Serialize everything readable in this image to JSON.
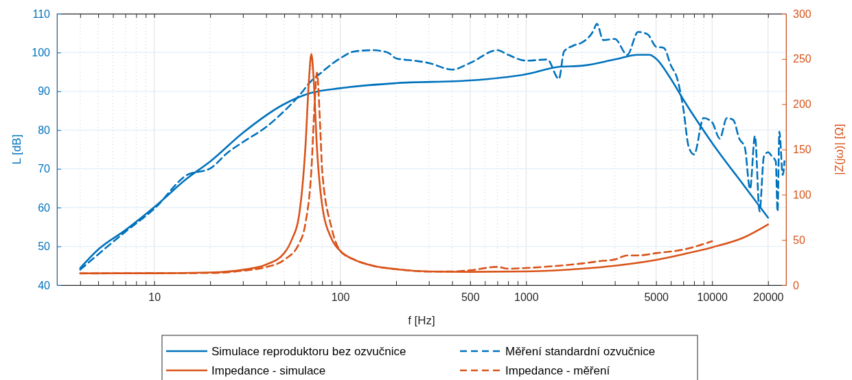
{
  "chart_data": {
    "type": "line",
    "xlabel": "f [Hz]",
    "ylabel": "L [dB]",
    "y2label": "|Z(jω)| [Ω]",
    "log": "x",
    "grid": true,
    "legend": "bottom",
    "xlim": [
      3,
      25000
    ],
    "xticks": [
      {
        "value": 4,
        "label": null
      },
      {
        "value": 5,
        "label": null
      },
      {
        "value": 6,
        "label": null
      },
      {
        "value": 7,
        "label": null
      },
      {
        "value": 8,
        "label": null
      },
      {
        "value": 9,
        "label": null
      },
      10,
      {
        "value": 20,
        "label": null
      },
      {
        "value": 30,
        "label": null
      },
      {
        "value": 40,
        "label": null
      },
      {
        "value": 50,
        "label": null
      },
      {
        "value": 60,
        "label": null
      },
      {
        "value": 70,
        "label": null
      },
      {
        "value": 80,
        "label": null
      },
      {
        "value": 90,
        "label": null
      },
      100,
      {
        "value": 200,
        "label": null
      },
      {
        "value": 300,
        "label": null
      },
      {
        "value": 400,
        "label": null
      },
      500,
      {
        "value": 600,
        "label": null
      },
      {
        "value": 700,
        "label": null
      },
      {
        "value": 800,
        "label": null
      },
      {
        "value": 900,
        "label": null
      },
      1000,
      {
        "value": 2000,
        "label": null
      },
      {
        "value": 3000,
        "label": null
      },
      {
        "value": 4000,
        "label": null
      },
      5000,
      {
        "value": 6000,
        "label": null
      },
      {
        "value": 7000,
        "label": null
      },
      {
        "value": 8000,
        "label": null
      },
      {
        "value": 9000,
        "label": null
      },
      10000,
      20000
    ],
    "ylim": [
      40,
      110
    ],
    "yticks": [
      40,
      50,
      60,
      70,
      80,
      90,
      100,
      110
    ],
    "y2lim": [
      0,
      300
    ],
    "y2ticks": [
      0,
      50,
      100,
      150,
      200,
      250,
      300
    ],
    "series": [
      {
        "name": "Simulace reproduktoru bez ozvučnice",
        "color": "#0072bd",
        "line_style": "solid",
        "x": [
          4,
          5,
          7,
          10,
          15,
          20,
          30,
          50,
          70,
          100,
          200,
          500,
          1000,
          1500,
          2000,
          3000,
          4000,
          4600,
          5000,
          6000,
          7000,
          10000,
          15000,
          20000
        ],
        "values": [
          44.4,
          49.2,
          54.2,
          60.1,
          67.5,
          71.9,
          79.3,
          86.7,
          89.6,
          90.8,
          92.1,
          92.8,
          94.4,
          96.3,
          96.6,
          98.2,
          99.4,
          99.4,
          98.4,
          93.2,
          87.9,
          76.7,
          65.4,
          57.4
        ]
      },
      {
        "name": "Měření standardní ozvučnice",
        "color": "#0072bd",
        "line_style": "dashed",
        "x": [
          4,
          7,
          10,
          15,
          20,
          25,
          30,
          40,
          50,
          60,
          70,
          80,
          90,
          100,
          120,
          150,
          180,
          200,
          250,
          300,
          400,
          500,
          700,
          800,
          1000,
          1300,
          1500,
          1600,
          1800,
          2000,
          2300,
          2400,
          2600,
          3000,
          3500,
          4000,
          4500,
          5000,
          5500,
          6000,
          6500,
          7000,
          7500,
          8000,
          9000,
          10000,
          11000,
          12000,
          13000,
          14000,
          15000,
          16000,
          17000,
          18000,
          19000,
          20000,
          21000,
          22000,
          22500,
          23000,
          24000,
          24500
        ],
        "values": [
          44,
          53.8,
          59.7,
          68.4,
          70.1,
          74.3,
          76.9,
          80.8,
          84.9,
          88.8,
          92.7,
          95,
          97,
          98.5,
          100.3,
          100.6,
          100,
          98.5,
          97.9,
          97.3,
          95.6,
          97.3,
          100.6,
          99.4,
          97.9,
          98.2,
          93.2,
          100.3,
          101.8,
          102.6,
          105.6,
          107.4,
          103.2,
          103.5,
          99.4,
          105.3,
          104.7,
          101.5,
          101.2,
          96.7,
          93.2,
          85.6,
          75.5,
          73.7,
          83.1,
          82,
          77.8,
          83.1,
          82.6,
          77.8,
          75.5,
          64.8,
          78.5,
          59,
          73.2,
          74.3,
          73.2,
          71.9,
          59,
          79.6,
          68.4,
          72
        ]
      },
      {
        "name": "Impedance - simulace",
        "color": "#d95319",
        "line_style": "solid",
        "axis": "y2",
        "x": [
          4,
          10,
          20,
          30,
          40,
          50,
          55,
          60,
          65,
          68,
          70,
          72,
          75,
          80,
          90,
          100,
          120,
          150,
          200,
          300,
          500,
          1000,
          2000,
          3000,
          5000,
          7000,
          10000,
          15000,
          20000
        ],
        "values": [
          13.1,
          13.2,
          14,
          17,
          22.8,
          35.4,
          50.6,
          76,
          152,
          228,
          255.6,
          228,
          152,
          88.6,
          51,
          38,
          27.8,
          21.5,
          17.7,
          15.2,
          14.7,
          15.2,
          18.2,
          21.5,
          27.9,
          34.2,
          41.8,
          53.2,
          67.1
        ]
      },
      {
        "name": "Impedance - měření",
        "color": "#d95319",
        "line_style": "dashed",
        "axis": "y2",
        "x": [
          4,
          20,
          30,
          40,
          50,
          60,
          65,
          70,
          73,
          75,
          78,
          80,
          90,
          100,
          120,
          150,
          200,
          300,
          400,
          500,
          700,
          800,
          1000,
          1500,
          2000,
          2500,
          3000,
          3500,
          4000,
          5000,
          7000,
          10000
        ],
        "values": [
          13,
          13.5,
          16,
          20,
          28,
          45.6,
          68,
          127,
          203,
          235,
          177,
          127,
          63,
          38,
          28,
          21.5,
          17.7,
          15,
          15.2,
          16.5,
          20.2,
          18.2,
          19,
          21.5,
          24,
          26.6,
          28.4,
          32.9,
          32.9,
          35.4,
          39.3,
          48.6
        ]
      }
    ]
  }
}
